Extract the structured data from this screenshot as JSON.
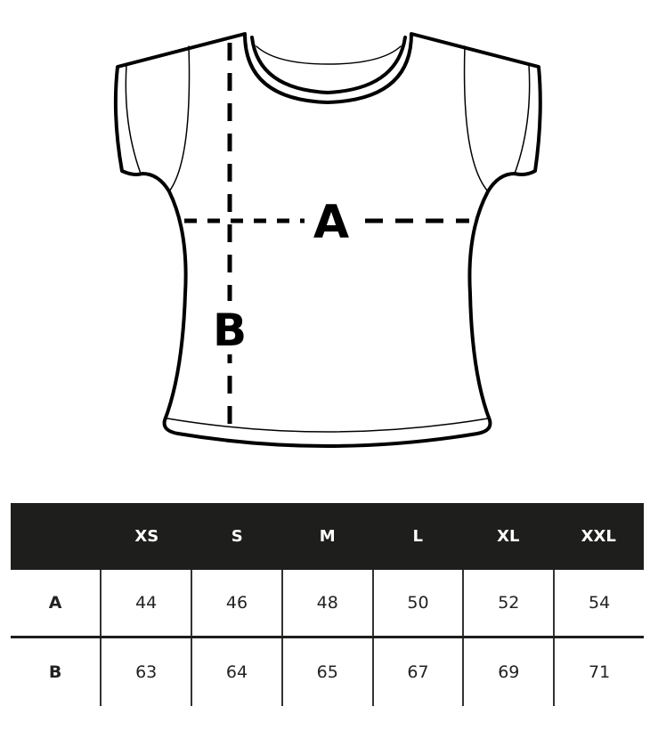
{
  "diagram": {
    "labels": {
      "width": "A",
      "length": "B"
    }
  },
  "size_table": {
    "corner": "",
    "sizes": [
      "XS",
      "S",
      "M",
      "L",
      "XL",
      "XXL"
    ],
    "rows": [
      {
        "label": "A",
        "values": [
          "44",
          "46",
          "48",
          "50",
          "52",
          "54"
        ]
      },
      {
        "label": "B",
        "values": [
          "63",
          "64",
          "65",
          "67",
          "69",
          "71"
        ]
      }
    ]
  },
  "colors": {
    "header_bg": "#1e1e1c",
    "line": "#000000"
  }
}
